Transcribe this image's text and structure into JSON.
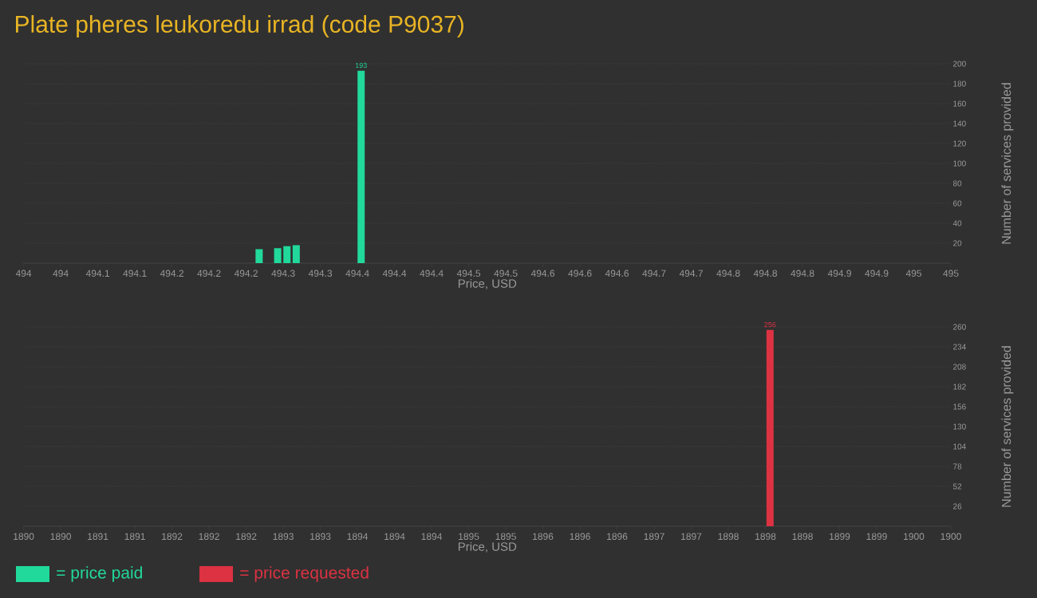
{
  "chart_data": [
    {
      "type": "bar",
      "title": "Plate pheres leukoredu irrad (code P9037)",
      "xlabel": "Price, USD",
      "ylabel": "Number of services provided",
      "x": [
        494.254,
        494.274,
        494.284,
        494.294,
        494.364
      ],
      "series": [
        {
          "name": "= price paid",
          "color": "#21d99b",
          "values": [
            14,
            15,
            17,
            18,
            193
          ],
          "value_labels": [
            null,
            null,
            null,
            null,
            "193"
          ]
        }
      ],
      "xlim": [
        494,
        495
      ],
      "xticks": [
        494,
        {
          "value": 494.04,
          "label": "494"
        },
        {
          "value": 494.08,
          "label": "494.1"
        },
        {
          "value": 494.12,
          "label": "494.1"
        },
        {
          "value": 494.16,
          "label": "494.2"
        },
        494.2,
        {
          "value": 494.24,
          "label": "494.2"
        },
        {
          "value": 494.28,
          "label": "494.3"
        },
        {
          "value": 494.32,
          "label": "494.3"
        },
        {
          "value": 494.36,
          "label": "494.4"
        },
        494.4,
        {
          "value": 494.44,
          "label": "494.4"
        },
        {
          "value": 494.48,
          "label": "494.5"
        },
        {
          "value": 494.52,
          "label": "494.5"
        },
        {
          "value": 494.56,
          "label": "494.6"
        },
        494.6,
        {
          "value": 494.64,
          "label": "494.6"
        },
        {
          "value": 494.68,
          "label": "494.7"
        },
        {
          "value": 494.72,
          "label": "494.7"
        },
        {
          "value": 494.76,
          "label": "494.8"
        },
        494.8,
        {
          "value": 494.84,
          "label": "494.8"
        },
        {
          "value": 494.88,
          "label": "494.9"
        },
        {
          "value": 494.92,
          "label": "494.9"
        },
        {
          "value": 494.96,
          "label": "495"
        },
        495
      ],
      "ylim": [
        0,
        200
      ],
      "yticks": [
        20,
        40,
        60,
        80,
        100,
        120,
        140,
        160,
        180,
        200
      ],
      "grid": "y",
      "legend": "bottom left"
    },
    {
      "type": "bar",
      "xlabel": "Price, USD",
      "ylabel": "Number of services provided",
      "x": [
        1898.05
      ],
      "series": [
        {
          "name": "= price requested",
          "color": "#dc3242",
          "values": [
            256
          ],
          "value_labels": [
            "256"
          ]
        }
      ],
      "xlim": [
        1890,
        1900
      ],
      "xticks": [
        1890,
        {
          "value": 1890.4,
          "label": "1890"
        },
        {
          "value": 1890.8,
          "label": "1891"
        },
        {
          "value": 1891.2,
          "label": "1891"
        },
        {
          "value": 1891.6,
          "label": "1892"
        },
        1892,
        {
          "value": 1892.4,
          "label": "1892"
        },
        {
          "value": 1892.8,
          "label": "1893"
        },
        {
          "value": 1893.2,
          "label": "1893"
        },
        {
          "value": 1893.6,
          "label": "1894"
        },
        1894,
        {
          "value": 1894.4,
          "label": "1894"
        },
        {
          "value": 1894.8,
          "label": "1895"
        },
        {
          "value": 1895.2,
          "label": "1895"
        },
        {
          "value": 1895.6,
          "label": "1896"
        },
        1896,
        {
          "value": 1896.4,
          "label": "1896"
        },
        {
          "value": 1896.8,
          "label": "1897"
        },
        {
          "value": 1897.2,
          "label": "1897"
        },
        {
          "value": 1897.6,
          "label": "1898"
        },
        1898,
        {
          "value": 1898.4,
          "label": "1898"
        },
        {
          "value": 1898.8,
          "label": "1899"
        },
        {
          "value": 1899.2,
          "label": "1899"
        },
        {
          "value": 1899.6,
          "label": "1900"
        },
        1900
      ],
      "ylim": [
        0,
        260
      ],
      "yticks": [
        26,
        52,
        78,
        104,
        130,
        156,
        182,
        208,
        234,
        260
      ],
      "grid": "y",
      "legend": "bottom left"
    }
  ]
}
